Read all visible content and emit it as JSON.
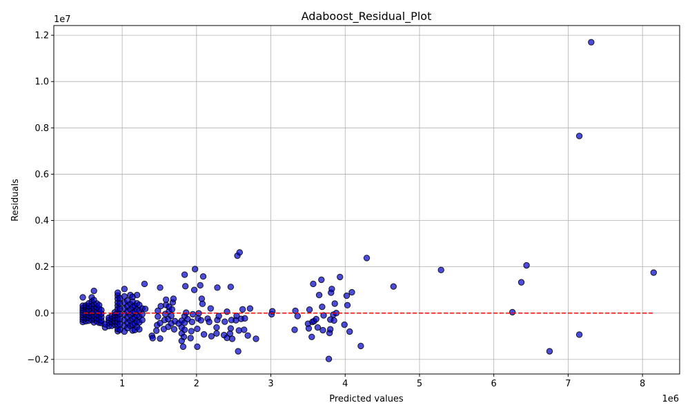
{
  "chart_data": {
    "type": "scatter",
    "title": "Adaboost_Residual_Plot",
    "xlabel": "Predicted values",
    "ylabel": "Residuals",
    "x_exponent_label": "1e6",
    "y_exponent_label": "1e7",
    "xlim": [
      80000,
      8500000
    ],
    "ylim": [
      -2630000,
      12420000
    ],
    "x_ticks": [
      1000000,
      2000000,
      3000000,
      4000000,
      5000000,
      6000000,
      7000000,
      8000000
    ],
    "x_tick_labels": [
      "1",
      "2",
      "3",
      "4",
      "5",
      "6",
      "7",
      "8"
    ],
    "y_ticks": [
      -2000000,
      0,
      2000000,
      4000000,
      6000000,
      8000000,
      10000000,
      12000000
    ],
    "y_tick_labels": [
      "−0.2",
      "0.0",
      "0.2",
      "0.4",
      "0.6",
      "0.8",
      "1.0",
      "1.2"
    ],
    "grid": true,
    "marker_color": "#0000cc",
    "marker_edge_color": "#000000",
    "marker_alpha": 0.7,
    "zero_line": {
      "y": 0,
      "x_range": [
        480000,
        8150000
      ],
      "color": "#ff0000",
      "style": "dashed"
    },
    "points": [
      [
        470000,
        -380000
      ],
      [
        470000,
        -280000
      ],
      [
        470000,
        -180000
      ],
      [
        470000,
        -80000
      ],
      [
        470000,
        20000
      ],
      [
        470000,
        120000
      ],
      [
        470000,
        220000
      ],
      [
        470000,
        320000
      ],
      [
        470000,
        680000
      ],
      [
        510000,
        -350000
      ],
      [
        510000,
        -200000
      ],
      [
        510000,
        -50000
      ],
      [
        510000,
        100000
      ],
      [
        510000,
        250000
      ],
      [
        510000,
        330000
      ],
      [
        550000,
        -330000
      ],
      [
        550000,
        -210000
      ],
      [
        550000,
        -90000
      ],
      [
        550000,
        40000
      ],
      [
        550000,
        170000
      ],
      [
        550000,
        300000
      ],
      [
        550000,
        420000
      ],
      [
        590000,
        -300000
      ],
      [
        590000,
        -150000
      ],
      [
        590000,
        0
      ],
      [
        590000,
        150000
      ],
      [
        590000,
        300000
      ],
      [
        590000,
        500000
      ],
      [
        590000,
        680000
      ],
      [
        620000,
        -400000
      ],
      [
        620000,
        -250000
      ],
      [
        620000,
        -100000
      ],
      [
        620000,
        60000
      ],
      [
        620000,
        210000
      ],
      [
        620000,
        380000
      ],
      [
        620000,
        560000
      ],
      [
        620000,
        960000
      ],
      [
        660000,
        -360000
      ],
      [
        660000,
        -220000
      ],
      [
        660000,
        -60000
      ],
      [
        660000,
        100000
      ],
      [
        660000,
        260000
      ],
      [
        660000,
        410000
      ],
      [
        690000,
        -420000
      ],
      [
        690000,
        -280000
      ],
      [
        690000,
        -120000
      ],
      [
        690000,
        40000
      ],
      [
        690000,
        190000
      ],
      [
        690000,
        340000
      ],
      [
        720000,
        -430000
      ],
      [
        720000,
        -320000
      ],
      [
        720000,
        -170000
      ],
      [
        720000,
        -20000
      ],
      [
        720000,
        130000
      ],
      [
        770000,
        -620000
      ],
      [
        770000,
        -480000
      ],
      [
        820000,
        -560000
      ],
      [
        820000,
        -420000
      ],
      [
        820000,
        -300000
      ],
      [
        820000,
        -200000
      ],
      [
        860000,
        -550000
      ],
      [
        860000,
        -400000
      ],
      [
        860000,
        -250000
      ],
      [
        860000,
        -130000
      ],
      [
        900000,
        -500000
      ],
      [
        900000,
        -350000
      ],
      [
        900000,
        -200000
      ],
      [
        900000,
        -80000
      ],
      [
        900000,
        30000
      ],
      [
        940000,
        -780000
      ],
      [
        940000,
        -680000
      ],
      [
        940000,
        -520000
      ],
      [
        940000,
        -380000
      ],
      [
        940000,
        -240000
      ],
      [
        940000,
        -100000
      ],
      [
        940000,
        40000
      ],
      [
        940000,
        180000
      ],
      [
        940000,
        320000
      ],
      [
        940000,
        460000
      ],
      [
        940000,
        620000
      ],
      [
        940000,
        760000
      ],
      [
        940000,
        880000
      ],
      [
        970000,
        -720000
      ],
      [
        970000,
        -480000
      ],
      [
        970000,
        -250000
      ],
      [
        970000,
        -30000
      ],
      [
        970000,
        190000
      ],
      [
        970000,
        420000
      ],
      [
        970000,
        640000
      ],
      [
        1030000,
        -800000
      ],
      [
        1030000,
        -550000
      ],
      [
        1030000,
        -300000
      ],
      [
        1030000,
        -50000
      ],
      [
        1030000,
        200000
      ],
      [
        1030000,
        450000
      ],
      [
        1030000,
        720000
      ],
      [
        1030000,
        1040000
      ],
      [
        1070000,
        -650000
      ],
      [
        1070000,
        -420000
      ],
      [
        1070000,
        -180000
      ],
      [
        1070000,
        60000
      ],
      [
        1070000,
        300000
      ],
      [
        1070000,
        540000
      ],
      [
        1110000,
        -550000
      ],
      [
        1110000,
        -330000
      ],
      [
        1110000,
        -90000
      ],
      [
        1110000,
        150000
      ],
      [
        1110000,
        390000
      ],
      [
        1110000,
        780000
      ],
      [
        1140000,
        -750000
      ],
      [
        1140000,
        -500000
      ],
      [
        1140000,
        -250000
      ],
      [
        1140000,
        0
      ],
      [
        1140000,
        250000
      ],
      [
        1140000,
        500000
      ],
      [
        1140000,
        700000
      ],
      [
        1170000,
        -730000
      ],
      [
        1170000,
        -460000
      ],
      [
        1170000,
        -200000
      ],
      [
        1170000,
        60000
      ],
      [
        1170000,
        320000
      ],
      [
        1200000,
        -600000
      ],
      [
        1200000,
        -350000
      ],
      [
        1200000,
        -100000
      ],
      [
        1200000,
        150000
      ],
      [
        1200000,
        420000
      ],
      [
        1200000,
        780000
      ],
      [
        1230000,
        -700000
      ],
      [
        1230000,
        -400000
      ],
      [
        1230000,
        -150000
      ],
      [
        1230000,
        100000
      ],
      [
        1230000,
        350000
      ],
      [
        1270000,
        -300000
      ],
      [
        1270000,
        -50000
      ],
      [
        1270000,
        200000
      ],
      [
        1300000,
        1260000
      ],
      [
        1310000,
        180000
      ],
      [
        1400000,
        -980000
      ],
      [
        1410000,
        -1080000
      ],
      [
        1460000,
        -760000
      ],
      [
        1470000,
        -520000
      ],
      [
        1480000,
        -150000
      ],
      [
        1480000,
        100000
      ],
      [
        1510000,
        -1100000
      ],
      [
        1510000,
        -430000
      ],
      [
        1510000,
        1100000
      ],
      [
        1520000,
        300000
      ],
      [
        1560000,
        -690000
      ],
      [
        1570000,
        -300000
      ],
      [
        1580000,
        -40000
      ],
      [
        1590000,
        350000
      ],
      [
        1590000,
        580000
      ],
      [
        1620000,
        -590000
      ],
      [
        1620000,
        -260000
      ],
      [
        1630000,
        80000
      ],
      [
        1630000,
        270000
      ],
      [
        1660000,
        -450000
      ],
      [
        1660000,
        -120000
      ],
      [
        1670000,
        160000
      ],
      [
        1680000,
        460000
      ],
      [
        1690000,
        620000
      ],
      [
        1700000,
        -700000
      ],
      [
        1710000,
        -350000
      ],
      [
        1760000,
        -450000
      ],
      [
        1800000,
        -1200000
      ],
      [
        1800000,
        -880000
      ],
      [
        1800000,
        -620000
      ],
      [
        1800000,
        -330000
      ],
      [
        1820000,
        -1450000
      ],
      [
        1830000,
        -1030000
      ],
      [
        1840000,
        -720000
      ],
      [
        1840000,
        -420000
      ],
      [
        1840000,
        -130000
      ],
      [
        1840000,
        1660000
      ],
      [
        1850000,
        1160000
      ],
      [
        1860000,
        20000
      ],
      [
        1880000,
        -260000
      ],
      [
        1920000,
        -1080000
      ],
      [
        1930000,
        -780000
      ],
      [
        1940000,
        -380000
      ],
      [
        1950000,
        -50000
      ],
      [
        1970000,
        1000000
      ],
      [
        1980000,
        1900000
      ],
      [
        2010000,
        -1450000
      ],
      [
        2010000,
        -680000
      ],
      [
        2020000,
        -230000
      ],
      [
        2030000,
        -10000
      ],
      [
        2050000,
        1200000
      ],
      [
        2060000,
        -310000
      ],
      [
        2070000,
        620000
      ],
      [
        2080000,
        400000
      ],
      [
        2090000,
        1580000
      ],
      [
        2100000,
        -920000
      ],
      [
        2150000,
        -240000
      ],
      [
        2170000,
        -380000
      ],
      [
        2190000,
        200000
      ],
      [
        2200000,
        -1000000
      ],
      [
        2270000,
        -880000
      ],
      [
        2270000,
        -620000
      ],
      [
        2280000,
        -300000
      ],
      [
        2280000,
        1100000
      ],
      [
        2300000,
        -130000
      ],
      [
        2370000,
        -950000
      ],
      [
        2380000,
        -370000
      ],
      [
        2410000,
        -1070000
      ],
      [
        2410000,
        60000
      ],
      [
        2450000,
        -890000
      ],
      [
        2460000,
        -660000
      ],
      [
        2460000,
        1130000
      ],
      [
        2470000,
        -300000
      ],
      [
        2480000,
        -1110000
      ],
      [
        2530000,
        -310000
      ],
      [
        2540000,
        -120000
      ],
      [
        2550000,
        2480000
      ],
      [
        2560000,
        -1650000
      ],
      [
        2570000,
        -750000
      ],
      [
        2580000,
        2620000
      ],
      [
        2600000,
        -250000
      ],
      [
        2620000,
        160000
      ],
      [
        2640000,
        -720000
      ],
      [
        2650000,
        -230000
      ],
      [
        2690000,
        -970000
      ],
      [
        2720000,
        200000
      ],
      [
        2800000,
        -1110000
      ],
      [
        3010000,
        -50000
      ],
      [
        3020000,
        80000
      ],
      [
        3320000,
        -720000
      ],
      [
        3330000,
        100000
      ],
      [
        3360000,
        -130000
      ],
      [
        3500000,
        -460000
      ],
      [
        3510000,
        -660000
      ],
      [
        3520000,
        150000
      ],
      [
        3550000,
        -1030000
      ],
      [
        3560000,
        -380000
      ],
      [
        3570000,
        1260000
      ],
      [
        3580000,
        -350000
      ],
      [
        3610000,
        -260000
      ],
      [
        3630000,
        -620000
      ],
      [
        3650000,
        780000
      ],
      [
        3680000,
        1440000
      ],
      [
        3690000,
        270000
      ],
      [
        3700000,
        -740000
      ],
      [
        3710000,
        -100000
      ],
      [
        3780000,
        -1980000
      ],
      [
        3790000,
        -860000
      ],
      [
        3800000,
        -700000
      ],
      [
        3800000,
        -280000
      ],
      [
        3810000,
        880000
      ],
      [
        3820000,
        1040000
      ],
      [
        3840000,
        -70000
      ],
      [
        3850000,
        -320000
      ],
      [
        3860000,
        410000
      ],
      [
        3880000,
        0
      ],
      [
        3930000,
        1560000
      ],
      [
        3990000,
        -500000
      ],
      [
        4020000,
        750000
      ],
      [
        4030000,
        340000
      ],
      [
        4060000,
        -800000
      ],
      [
        4090000,
        900000
      ],
      [
        4210000,
        -1420000
      ],
      [
        4290000,
        2380000
      ],
      [
        4650000,
        1150000
      ],
      [
        5290000,
        1860000
      ],
      [
        6250000,
        40000
      ],
      [
        6370000,
        1330000
      ],
      [
        6440000,
        2060000
      ],
      [
        6750000,
        -1650000
      ],
      [
        7150000,
        7650000
      ],
      [
        7150000,
        -930000
      ],
      [
        7310000,
        11700000
      ],
      [
        8150000,
        1750000
      ]
    ]
  }
}
